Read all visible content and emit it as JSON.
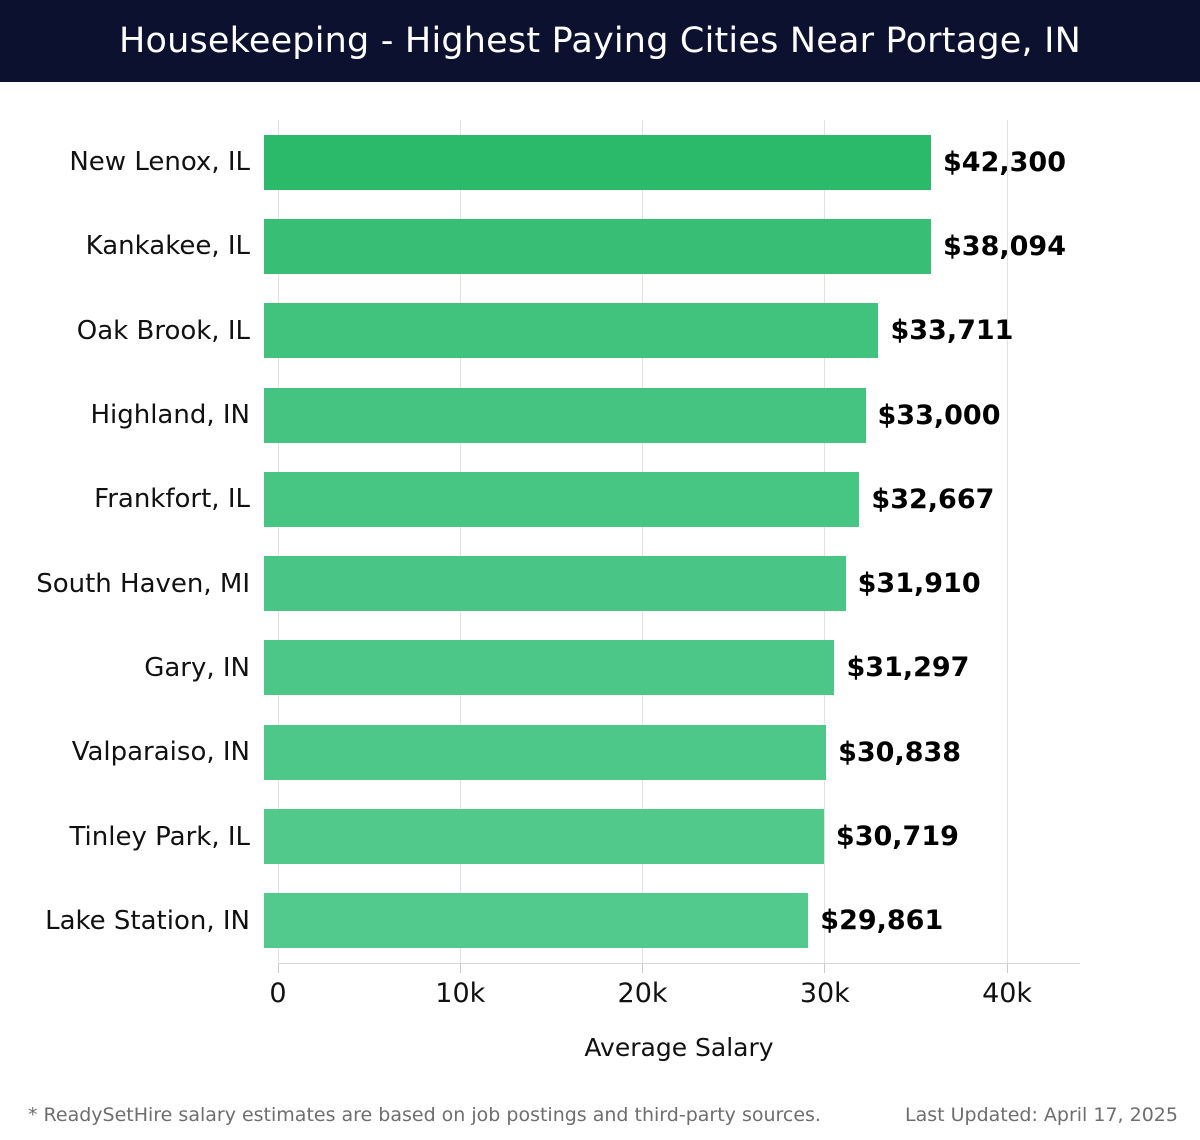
{
  "header": {
    "title": "Housekeeping - Highest Paying Cities Near Portage, IN"
  },
  "theme": {
    "header_bg": "#0d1130",
    "header_text": "#ffffff",
    "grid_color": "#e2e2e2",
    "axis_color": "#d6d6d6",
    "tick_color": "#c9c9c9",
    "label_color": "#111111",
    "value_color": "#000000",
    "footer_color": "#6e6e6e",
    "bar_accent": "#2bb96a"
  },
  "chart_data": {
    "type": "bar",
    "orientation": "horizontal",
    "title": "Housekeeping - Highest Paying Cities Near Portage, IN",
    "xlabel": "Average Salary",
    "ylabel": "",
    "xlim": [
      0,
      44000
    ],
    "grid": true,
    "categories": [
      "New Lenox, IL",
      "Kankakee, IL",
      "Oak Brook, IL",
      "Highland, IN",
      "Frankfort, IL",
      "South Haven, MI",
      "Gary, IN",
      "Valparaiso, IN",
      "Tinley Park, IL",
      "Lake Station, IN"
    ],
    "values": [
      42300,
      38094,
      33711,
      33000,
      32667,
      31910,
      31297,
      30838,
      30719,
      29861
    ],
    "value_labels": [
      "$42,300",
      "$38,094",
      "$33,711",
      "$33,000",
      "$32,667",
      "$31,910",
      "$31,297",
      "$30,838",
      "$30,719",
      "$29,861"
    ],
    "bar_colors": [
      "#2bb96a",
      "#38bf75",
      "#41c27d",
      "#44c480",
      "#47c583",
      "#49c685",
      "#4cc787",
      "#4ec889",
      "#50c98b",
      "#53ca8d"
    ],
    "x_ticks": {
      "values": [
        0,
        10000,
        20000,
        30000,
        40000
      ],
      "labels": [
        "0",
        "10k",
        "20k",
        "30k",
        "40k"
      ]
    },
    "legend": null
  },
  "footer": {
    "note": "* ReadySetHire salary estimates are based on job postings and third-party sources.",
    "last_updated": "Last Updated: April 17, 2025"
  }
}
